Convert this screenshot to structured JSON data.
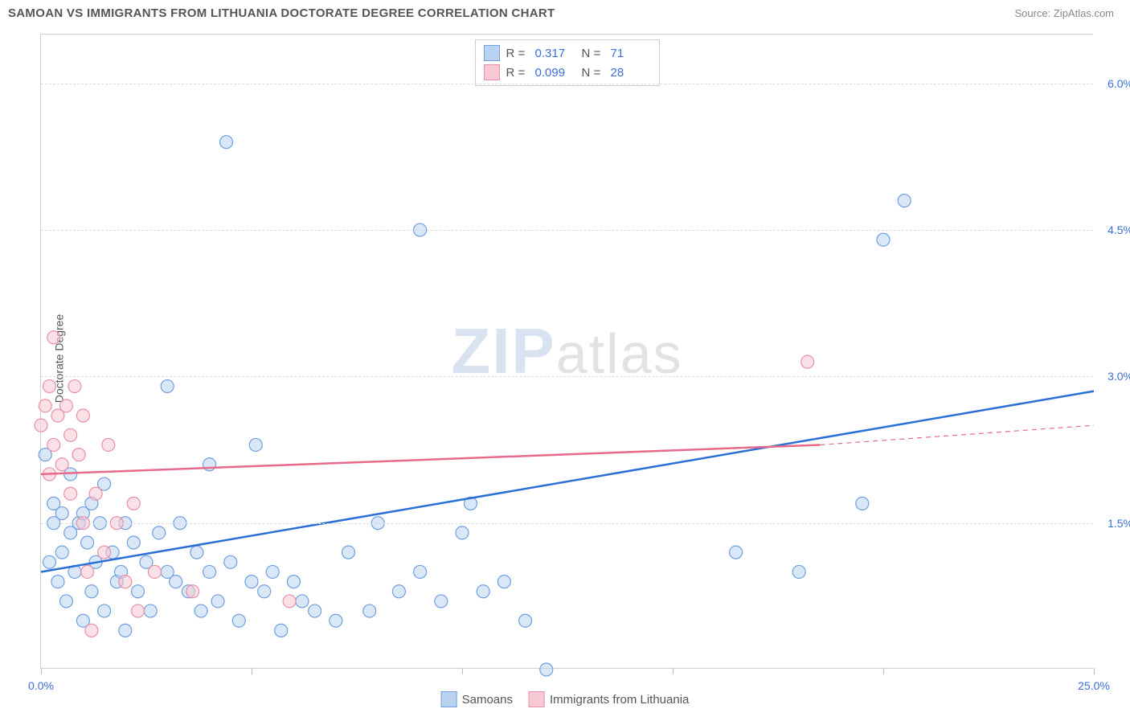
{
  "title": "SAMOAN VS IMMIGRANTS FROM LITHUANIA DOCTORATE DEGREE CORRELATION CHART",
  "source": "Source: ZipAtlas.com",
  "y_axis_label": "Doctorate Degree",
  "watermark": {
    "prefix": "ZIP",
    "suffix": "atlas"
  },
  "chart": {
    "type": "scatter",
    "background_color": "#ffffff",
    "grid_color": "#dcdcdc",
    "border_color": "#d0d0d0",
    "xlim": [
      0,
      25
    ],
    "ylim": [
      0,
      6.5
    ],
    "x_ticks": [
      0,
      5,
      10,
      15,
      20,
      25
    ],
    "x_tick_labels": {
      "0": "0.0%",
      "25": "25.0%"
    },
    "y_ticks": [
      1.5,
      3.0,
      4.5,
      6.0
    ],
    "y_tick_labels": [
      "1.5%",
      "3.0%",
      "4.5%",
      "6.0%"
    ],
    "tick_label_color": "#3b6fd6",
    "axis_label_color": "#555555",
    "axis_label_fontsize": 14,
    "tick_fontsize": 14,
    "marker_radius": 8,
    "marker_opacity": 0.55,
    "marker_stroke_width": 1.2,
    "line_width": 2.5,
    "series": [
      {
        "name": "Samoans",
        "color_fill": "#b9d3f0",
        "color_stroke": "#6f9fe0",
        "line_color": "#2a6fd6",
        "R": "0.317",
        "N": "71",
        "trend": {
          "x1": 0,
          "y1": 1.0,
          "x2": 25,
          "y2": 2.85,
          "dash": false,
          "extrap_x2": null
        },
        "points": [
          [
            0.1,
            2.2
          ],
          [
            0.2,
            1.1
          ],
          [
            0.3,
            1.5
          ],
          [
            0.3,
            1.7
          ],
          [
            0.4,
            0.9
          ],
          [
            0.5,
            1.2
          ],
          [
            0.5,
            1.6
          ],
          [
            0.6,
            0.7
          ],
          [
            0.7,
            1.4
          ],
          [
            0.7,
            2.0
          ],
          [
            0.8,
            1.0
          ],
          [
            0.9,
            1.5
          ],
          [
            1.0,
            1.6
          ],
          [
            1.0,
            0.5
          ],
          [
            1.1,
            1.3
          ],
          [
            1.2,
            1.7
          ],
          [
            1.2,
            0.8
          ],
          [
            1.3,
            1.1
          ],
          [
            1.4,
            1.5
          ],
          [
            1.5,
            0.6
          ],
          [
            1.5,
            1.9
          ],
          [
            1.7,
            1.2
          ],
          [
            1.8,
            0.9
          ],
          [
            1.9,
            1.0
          ],
          [
            2.0,
            1.5
          ],
          [
            2.0,
            0.4
          ],
          [
            2.2,
            1.3
          ],
          [
            2.3,
            0.8
          ],
          [
            2.5,
            1.1
          ],
          [
            2.6,
            0.6
          ],
          [
            2.8,
            1.4
          ],
          [
            3.0,
            1.0
          ],
          [
            3.0,
            2.9
          ],
          [
            3.2,
            0.9
          ],
          [
            3.3,
            1.5
          ],
          [
            3.5,
            0.8
          ],
          [
            3.7,
            1.2
          ],
          [
            3.8,
            0.6
          ],
          [
            4.0,
            1.0
          ],
          [
            4.0,
            2.1
          ],
          [
            4.2,
            0.7
          ],
          [
            4.4,
            5.4
          ],
          [
            4.5,
            1.1
          ],
          [
            4.7,
            0.5
          ],
          [
            5.0,
            0.9
          ],
          [
            5.1,
            2.3
          ],
          [
            5.3,
            0.8
          ],
          [
            5.5,
            1.0
          ],
          [
            5.7,
            0.4
          ],
          [
            6.0,
            0.9
          ],
          [
            6.2,
            0.7
          ],
          [
            6.5,
            0.6
          ],
          [
            7.0,
            0.5
          ],
          [
            7.3,
            1.2
          ],
          [
            7.8,
            0.6
          ],
          [
            8.0,
            1.5
          ],
          [
            8.5,
            0.8
          ],
          [
            9.0,
            4.5
          ],
          [
            9.0,
            1.0
          ],
          [
            9.5,
            0.7
          ],
          [
            10.0,
            1.4
          ],
          [
            10.2,
            1.7
          ],
          [
            10.5,
            0.8
          ],
          [
            11.0,
            0.9
          ],
          [
            11.5,
            0.5
          ],
          [
            12.0,
            0.0
          ],
          [
            16.5,
            1.2
          ],
          [
            18.0,
            1.0
          ],
          [
            19.5,
            1.7
          ],
          [
            20.0,
            4.4
          ],
          [
            20.5,
            4.8
          ]
        ]
      },
      {
        "name": "Immigrants from Lithuania",
        "color_fill": "#f6c9d4",
        "color_stroke": "#e98fa6",
        "line_color": "#e86a8a",
        "R": "0.099",
        "N": "28",
        "trend": {
          "x1": 0,
          "y1": 2.0,
          "x2": 18.5,
          "y2": 2.3,
          "dash": false,
          "extrap_x2": 25,
          "extrap_y2": 2.5
        },
        "points": [
          [
            0.0,
            2.5
          ],
          [
            0.1,
            2.7
          ],
          [
            0.2,
            2.0
          ],
          [
            0.2,
            2.9
          ],
          [
            0.3,
            2.3
          ],
          [
            0.3,
            3.4
          ],
          [
            0.4,
            2.6
          ],
          [
            0.5,
            2.1
          ],
          [
            0.6,
            2.7
          ],
          [
            0.7,
            1.8
          ],
          [
            0.7,
            2.4
          ],
          [
            0.8,
            2.9
          ],
          [
            0.9,
            2.2
          ],
          [
            1.0,
            1.5
          ],
          [
            1.0,
            2.6
          ],
          [
            1.1,
            1.0
          ],
          [
            1.2,
            0.4
          ],
          [
            1.3,
            1.8
          ],
          [
            1.5,
            1.2
          ],
          [
            1.6,
            2.3
          ],
          [
            1.8,
            1.5
          ],
          [
            2.0,
            0.9
          ],
          [
            2.2,
            1.7
          ],
          [
            2.3,
            0.6
          ],
          [
            2.7,
            1.0
          ],
          [
            3.6,
            0.8
          ],
          [
            5.9,
            0.7
          ],
          [
            18.2,
            3.15
          ]
        ]
      }
    ]
  },
  "legend_top": {
    "R_label": "R  =",
    "N_label": "N  ="
  },
  "legend_bottom": {
    "items": [
      "Samoans",
      "Immigrants from Lithuania"
    ]
  }
}
